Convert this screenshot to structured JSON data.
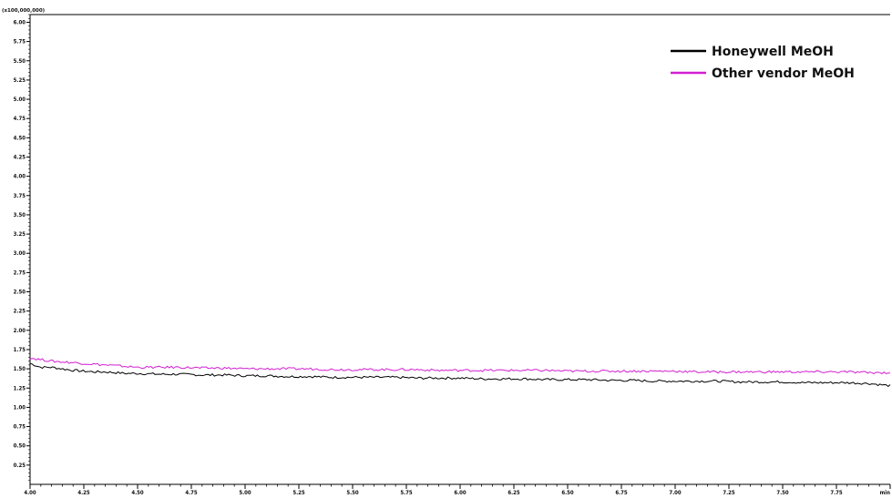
{
  "chart_data": {
    "type": "line",
    "title": "",
    "xlabel": "",
    "ylabel": "",
    "y_multiplier_label": "(x100,000,000)",
    "xlim": [
      4.0,
      8.0
    ],
    "ylim": [
      0,
      6.1
    ],
    "x_ticks": [
      "4.00",
      "4.25",
      "4.50",
      "4.75",
      "5.00",
      "5.25",
      "5.50",
      "5.75",
      "6.00",
      "6.25",
      "6.50",
      "6.75",
      "7.00",
      "7.25",
      "7.50",
      "7.75",
      "min"
    ],
    "x_tick_values": [
      4.0,
      4.25,
      4.5,
      4.75,
      5.0,
      5.25,
      5.5,
      5.75,
      6.0,
      6.25,
      6.5,
      6.75,
      7.0,
      7.25,
      7.5,
      7.75,
      8.0
    ],
    "y_ticks": [
      "0.25",
      "0.50",
      "0.75",
      "1.00",
      "1.25",
      "1.50",
      "1.75",
      "2.00",
      "2.25",
      "2.50",
      "2.75",
      "3.00",
      "3.25",
      "3.50",
      "3.75",
      "4.00",
      "4.25",
      "4.50",
      "4.75",
      "5.00",
      "5.25",
      "5.50",
      "5.75",
      "6.00"
    ],
    "y_tick_values": [
      0.25,
      0.5,
      0.75,
      1.0,
      1.25,
      1.5,
      1.75,
      2.0,
      2.25,
      2.5,
      2.75,
      3.0,
      3.25,
      3.5,
      3.75,
      4.0,
      4.25,
      4.5,
      4.75,
      5.0,
      5.25,
      5.5,
      5.75,
      6.0
    ],
    "grid": false,
    "legend_position": "top-right",
    "series": [
      {
        "name": "Honeywell MeOH",
        "color": "#000000",
        "x": [
          4.0,
          4.05,
          4.1,
          4.15,
          4.2,
          4.25,
          4.3,
          4.35,
          4.4,
          4.45,
          4.5,
          4.6,
          4.7,
          4.8,
          4.9,
          5.0,
          5.1,
          5.2,
          5.3,
          5.4,
          5.5,
          5.6,
          5.7,
          5.8,
          5.9,
          6.0,
          6.1,
          6.2,
          6.3,
          6.4,
          6.5,
          6.6,
          6.7,
          6.8,
          6.9,
          7.0,
          7.1,
          7.2,
          7.3,
          7.4,
          7.5,
          7.6,
          7.7,
          7.8,
          7.9,
          8.0
        ],
        "values": [
          1.57,
          1.52,
          1.52,
          1.5,
          1.48,
          1.47,
          1.46,
          1.46,
          1.45,
          1.44,
          1.44,
          1.43,
          1.43,
          1.42,
          1.42,
          1.41,
          1.41,
          1.4,
          1.4,
          1.39,
          1.39,
          1.39,
          1.39,
          1.38,
          1.38,
          1.38,
          1.37,
          1.37,
          1.37,
          1.36,
          1.36,
          1.36,
          1.35,
          1.35,
          1.34,
          1.34,
          1.34,
          1.34,
          1.33,
          1.33,
          1.33,
          1.32,
          1.32,
          1.32,
          1.31,
          1.28
        ]
      },
      {
        "name": "Other vendor MeOH",
        "color": "#d21fd2",
        "x": [
          4.0,
          4.05,
          4.1,
          4.15,
          4.2,
          4.25,
          4.3,
          4.35,
          4.4,
          4.45,
          4.5,
          4.6,
          4.7,
          4.8,
          4.9,
          5.0,
          5.1,
          5.2,
          5.3,
          5.4,
          5.5,
          5.6,
          5.7,
          5.8,
          5.9,
          6.0,
          6.1,
          6.2,
          6.3,
          6.4,
          6.5,
          6.6,
          6.7,
          6.8,
          6.9,
          7.0,
          7.1,
          7.2,
          7.3,
          7.4,
          7.5,
          7.6,
          7.7,
          7.8,
          7.9,
          8.0
        ],
        "values": [
          1.64,
          1.62,
          1.6,
          1.59,
          1.58,
          1.57,
          1.56,
          1.55,
          1.54,
          1.53,
          1.52,
          1.52,
          1.52,
          1.51,
          1.51,
          1.5,
          1.5,
          1.5,
          1.5,
          1.49,
          1.49,
          1.49,
          1.49,
          1.49,
          1.48,
          1.48,
          1.48,
          1.48,
          1.48,
          1.48,
          1.47,
          1.47,
          1.47,
          1.47,
          1.47,
          1.47,
          1.46,
          1.46,
          1.46,
          1.46,
          1.46,
          1.46,
          1.46,
          1.46,
          1.45,
          1.45
        ]
      }
    ]
  }
}
